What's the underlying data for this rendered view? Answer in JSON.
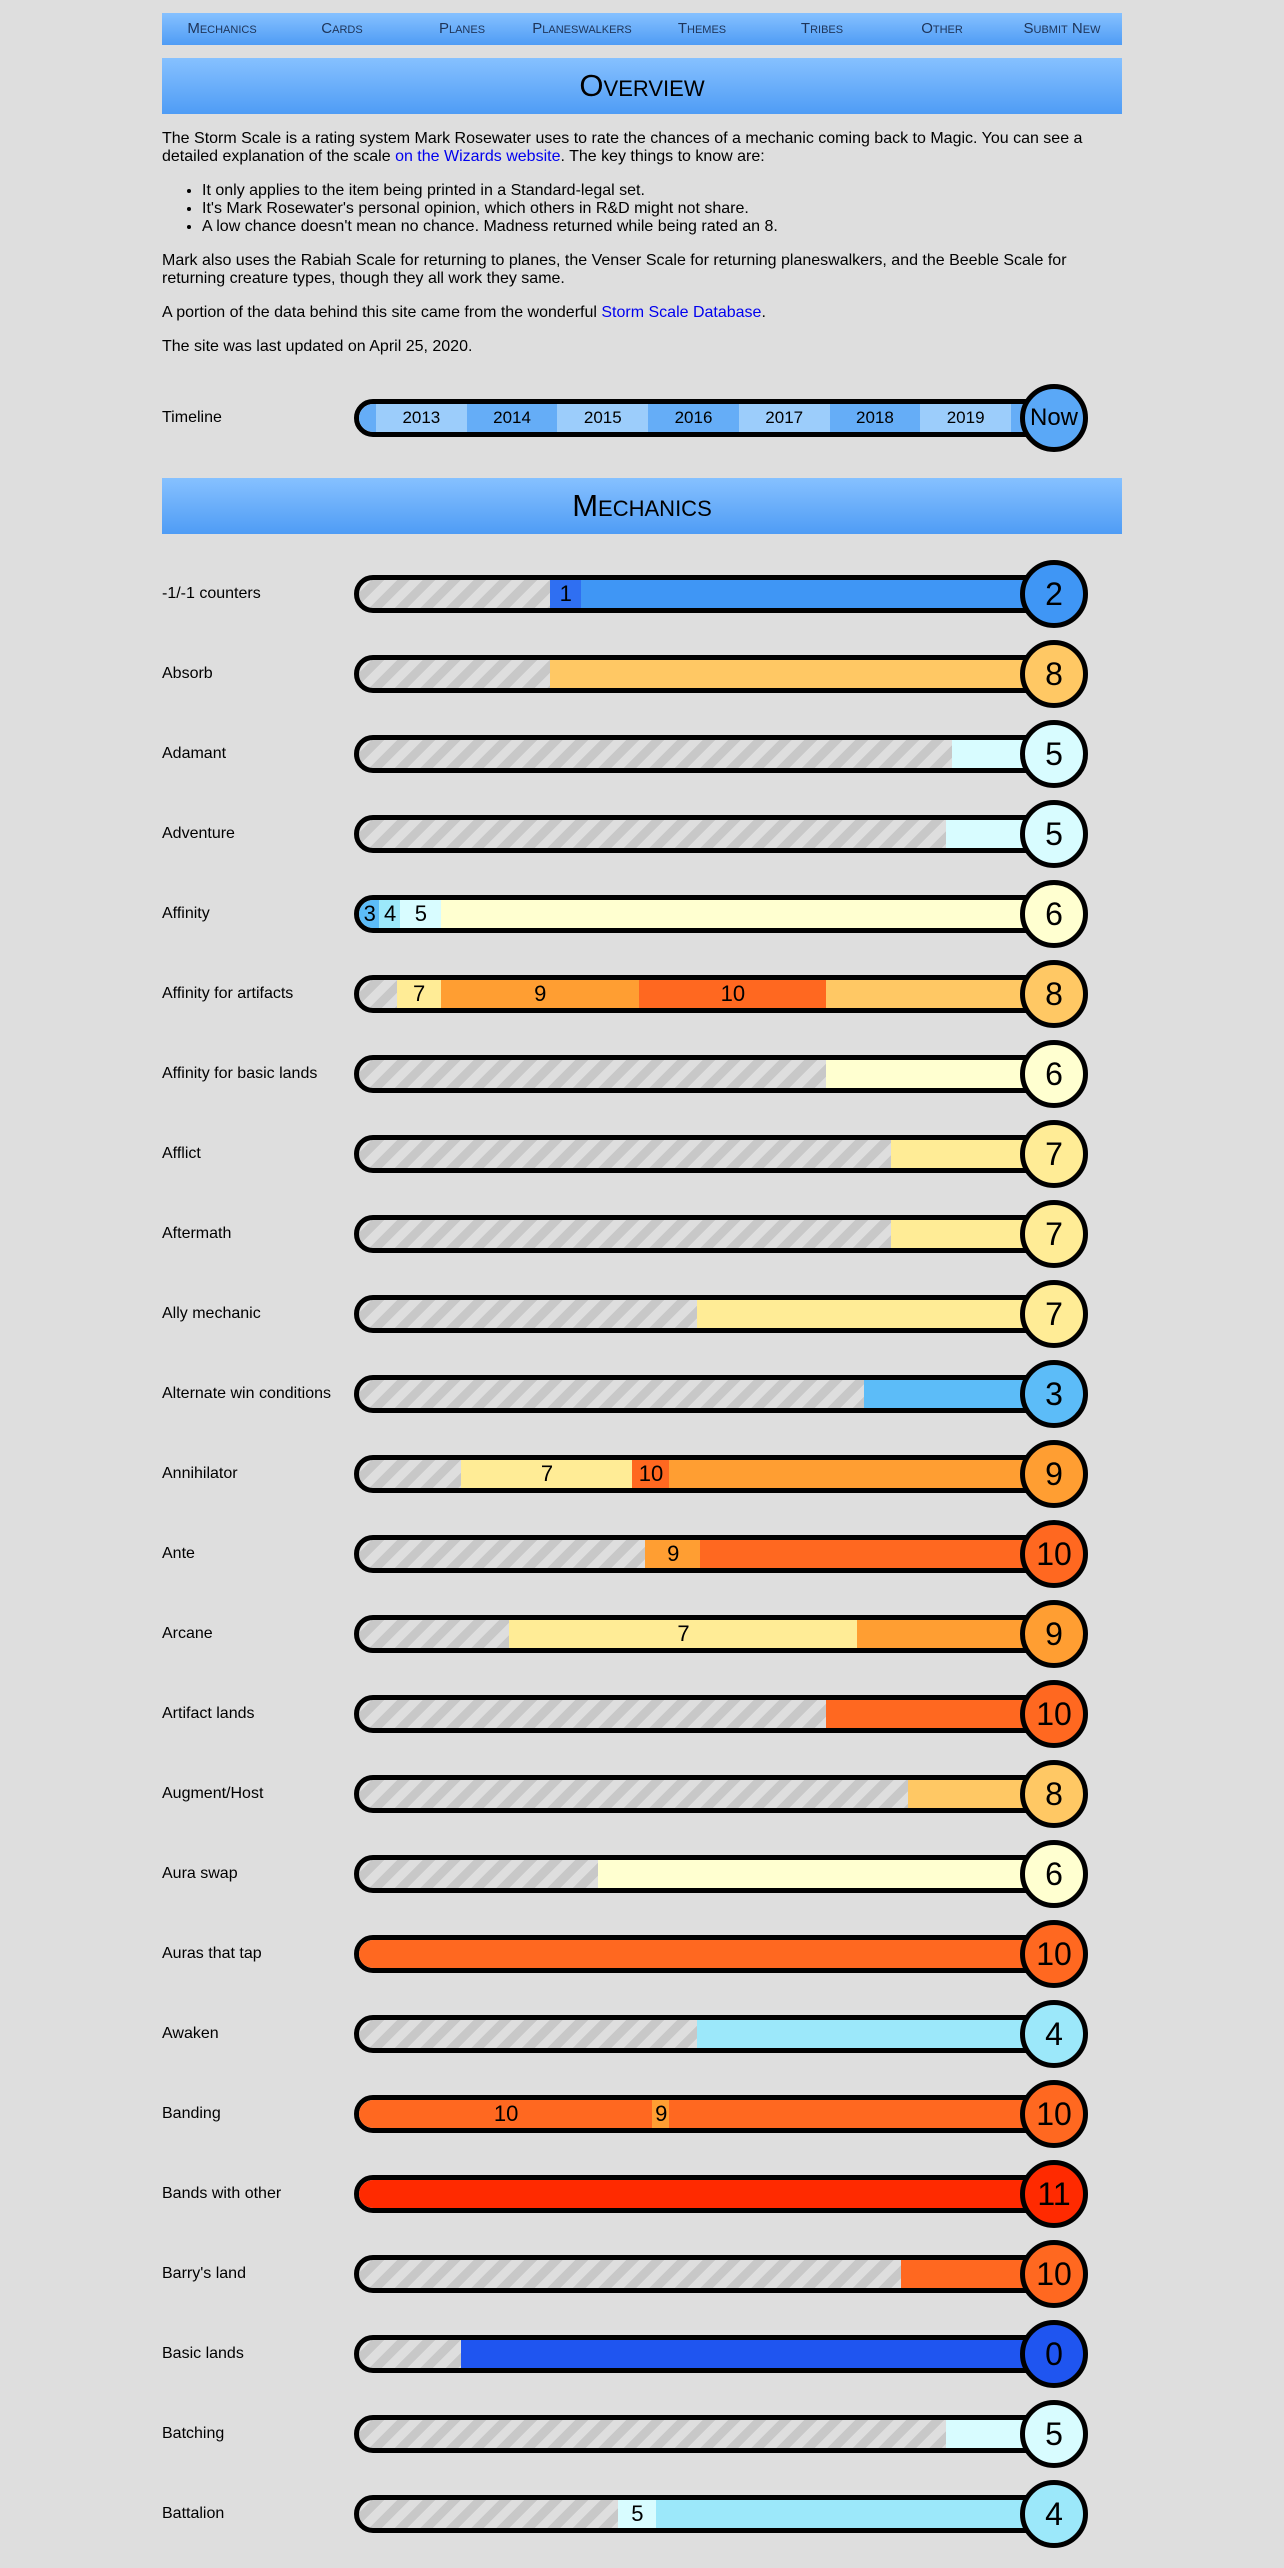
{
  "nav": [
    "Mechanics",
    "Cards",
    "Planes",
    "Planeswalkers",
    "Themes",
    "Tribes",
    "Other",
    "Submit New"
  ],
  "overview_title": "Overview",
  "intro": {
    "p1_a": "The Storm Scale is a rating system Mark Rosewater uses to rate the chances of a mechanic coming back to Magic. You can see a detailed explanation of the scale ",
    "p1_link": "on the Wizards website",
    "p1_b": ". The key things to know are:",
    "bullets": [
      "It only applies to the item being printed in a Standard-legal set.",
      "It's Mark Rosewater's personal opinion, which others in R&D might not share.",
      "A low chance doesn't mean no chance. Madness returned while being rated an 8."
    ],
    "p2": "Mark also uses the Rabiah Scale for returning to planes, the Venser Scale for returning planeswalkers, and the Beeble Scale for returning creature types, though they all work they same.",
    "p3_a": "A portion of the data behind this site came from the wonderful ",
    "p3_link": "Storm Scale Database",
    "p3_b": ".",
    "p4": "The site was last updated on April 25, 2020."
  },
  "timeline": {
    "label": "Timeline",
    "years": [
      "2013",
      "2014",
      "2015",
      "2016",
      "2017",
      "2018",
      "2019"
    ],
    "now": "Now"
  },
  "mechanics_title": "Mechanics",
  "colors": {
    "0": "#1f55f0",
    "1": "#2f6ff2",
    "2": "#3f96f5",
    "3": "#5cbcf8",
    "4": "#9ce8fa",
    "5": "#d8fcff",
    "6": "#ffffd0",
    "7": "#ffec96",
    "8": "#ffc864",
    "9": "#ff9e32",
    "10": "#ff6820",
    "11": "#ff2a00"
  },
  "mechanics": [
    {
      "name": "-1/-1 counters",
      "current": 2,
      "segs": [
        {
          "v": 1,
          "start": 0.28,
          "label": "1"
        },
        {
          "v": 2,
          "start": 0.325,
          "label": ""
        }
      ]
    },
    {
      "name": "Absorb",
      "current": 8,
      "segs": [
        {
          "v": 8,
          "start": 0.28,
          "label": ""
        }
      ]
    },
    {
      "name": "Adamant",
      "current": 5,
      "segs": [
        {
          "v": 5,
          "start": 0.87,
          "label": ""
        }
      ]
    },
    {
      "name": "Adventure",
      "current": 5,
      "segs": [
        {
          "v": 5,
          "start": 0.86,
          "label": ""
        }
      ]
    },
    {
      "name": "Affinity",
      "current": 6,
      "segs": [
        {
          "v": 3,
          "start": 0,
          "label": "3"
        },
        {
          "v": 4,
          "start": 0.03,
          "label": "4"
        },
        {
          "v": 5,
          "start": 0.06,
          "label": "5"
        },
        {
          "v": 6,
          "start": 0.12,
          "label": ""
        }
      ]
    },
    {
      "name": "Affinity for artifacts",
      "current": 8,
      "segs": [
        {
          "v": 7,
          "start": 0.055,
          "label": "7"
        },
        {
          "v": 9,
          "start": 0.12,
          "label": "9"
        },
        {
          "v": 10,
          "start": 0.41,
          "label": "10"
        },
        {
          "v": 8,
          "start": 0.685,
          "label": ""
        }
      ]
    },
    {
      "name": "Affinity for basic lands",
      "current": 6,
      "segs": [
        {
          "v": 6,
          "start": 0.685,
          "label": ""
        }
      ]
    },
    {
      "name": "Afflict",
      "current": 7,
      "segs": [
        {
          "v": 7,
          "start": 0.78,
          "label": ""
        }
      ]
    },
    {
      "name": "Aftermath",
      "current": 7,
      "segs": [
        {
          "v": 7,
          "start": 0.78,
          "label": ""
        }
      ]
    },
    {
      "name": "Ally mechanic",
      "current": 7,
      "segs": [
        {
          "v": 7,
          "start": 0.495,
          "label": ""
        }
      ]
    },
    {
      "name": "Alternate win conditions",
      "current": 3,
      "segs": [
        {
          "v": 3,
          "start": 0.74,
          "label": ""
        }
      ]
    },
    {
      "name": "Annihilator",
      "current": 9,
      "segs": [
        {
          "v": 7,
          "start": 0.15,
          "label": "7"
        },
        {
          "v": 10,
          "start": 0.4,
          "label": "10"
        },
        {
          "v": 9,
          "start": 0.455,
          "label": ""
        }
      ]
    },
    {
      "name": "Ante",
      "current": 10,
      "segs": [
        {
          "v": 9,
          "start": 0.42,
          "label": "9"
        },
        {
          "v": 10,
          "start": 0.5,
          "label": ""
        }
      ]
    },
    {
      "name": "Arcane",
      "current": 9,
      "segs": [
        {
          "v": 7,
          "start": 0.22,
          "label": "7"
        },
        {
          "v": 9,
          "start": 0.73,
          "label": ""
        }
      ]
    },
    {
      "name": "Artifact lands",
      "current": 10,
      "segs": [
        {
          "v": 10,
          "start": 0.685,
          "label": ""
        }
      ]
    },
    {
      "name": "Augment/Host",
      "current": 8,
      "segs": [
        {
          "v": 8,
          "start": 0.805,
          "label": ""
        }
      ]
    },
    {
      "name": "Aura swap",
      "current": 6,
      "segs": [
        {
          "v": 6,
          "start": 0.35,
          "label": ""
        }
      ]
    },
    {
      "name": "Auras that tap",
      "current": 10,
      "segs": [
        {
          "v": 10,
          "start": 0,
          "label": ""
        }
      ]
    },
    {
      "name": "Awaken",
      "current": 4,
      "segs": [
        {
          "v": 4,
          "start": 0.495,
          "label": ""
        }
      ]
    },
    {
      "name": "Banding",
      "current": 10,
      "segs": [
        {
          "v": 10,
          "start": 0,
          "label": "10"
        },
        {
          "v": 9,
          "start": 0.43,
          "label": "9"
        },
        {
          "v": 10,
          "start": 0.455,
          "label": ""
        }
      ]
    },
    {
      "name": "Bands with other",
      "current": 11,
      "segs": [
        {
          "v": 11,
          "start": 0,
          "label": ""
        }
      ]
    },
    {
      "name": "Barry's land",
      "current": 10,
      "segs": [
        {
          "v": 10,
          "start": 0.795,
          "label": ""
        }
      ]
    },
    {
      "name": "Basic lands",
      "current": 0,
      "segs": [
        {
          "v": 0,
          "start": 0.15,
          "label": ""
        }
      ]
    },
    {
      "name": "Batching",
      "current": 5,
      "segs": [
        {
          "v": 5,
          "start": 0.86,
          "label": ""
        }
      ]
    },
    {
      "name": "Battalion",
      "current": 4,
      "segs": [
        {
          "v": 5,
          "start": 0.38,
          "label": "5"
        },
        {
          "v": 4,
          "start": 0.435,
          "label": ""
        }
      ]
    }
  ]
}
